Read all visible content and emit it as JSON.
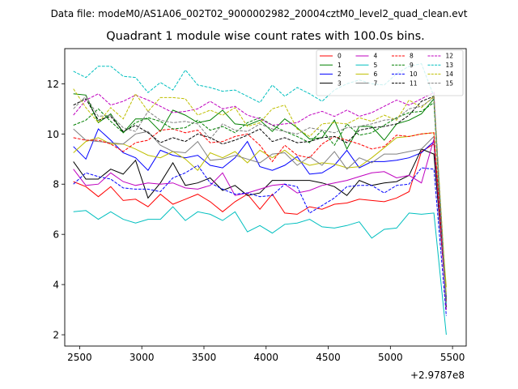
{
  "chart_data": {
    "type": "line",
    "suptitle": "Data file: modeM0/AS1A06_002T02_9000002982_20004cztM0_level2_quad_clean.evt",
    "title": "Quadrant 1 module wise count rates with 100.0s bins.",
    "xlabel": "",
    "ylabel": "",
    "x_offset_label": "+2.9787e8",
    "xlim": [
      2380,
      5610
    ],
    "ylim": [
      1.55,
      13.4
    ],
    "xticks": [
      2500,
      3000,
      3500,
      4000,
      4500,
      5000,
      5500
    ],
    "yticks": [
      2,
      4,
      6,
      8,
      10,
      12
    ],
    "legend_position": "top-right",
    "x": [
      2450,
      2550,
      2650,
      2750,
      2850,
      2950,
      3050,
      3150,
      3250,
      3350,
      3450,
      3550,
      3650,
      3750,
      3850,
      3950,
      4050,
      4150,
      4250,
      4350,
      4450,
      4550,
      4650,
      4750,
      4850,
      4950,
      5050,
      5150,
      5250,
      5350,
      5450
    ],
    "series": [
      {
        "name": "0",
        "color": "#ff0000",
        "dash": "solid",
        "values": [
          8.1,
          7.9,
          7.5,
          7.9,
          7.35,
          7.4,
          7.1,
          7.6,
          7.2,
          7.4,
          7.6,
          7.3,
          6.9,
          7.3,
          7.6,
          7.0,
          7.6,
          6.85,
          6.8,
          7.1,
          7.0,
          7.2,
          7.25,
          7.4,
          7.35,
          7.3,
          7.45,
          7.7,
          9.3,
          9.6,
          3.3
        ]
      },
      {
        "name": "1",
        "color": "#008000",
        "dash": "solid",
        "values": [
          11.6,
          11.55,
          10.45,
          10.8,
          10.05,
          10.6,
          10.6,
          10.1,
          10.95,
          10.75,
          10.45,
          10.55,
          10.95,
          10.4,
          10.35,
          10.55,
          10.1,
          10.6,
          10.25,
          9.8,
          9.85,
          10.55,
          9.4,
          10.3,
          10.3,
          9.75,
          10.4,
          10.55,
          10.8,
          11.4,
          3.4
        ]
      },
      {
        "name": "2",
        "color": "#0000ff",
        "dash": "solid",
        "values": [
          9.5,
          9.0,
          10.2,
          9.75,
          9.25,
          9.05,
          8.55,
          9.35,
          9.15,
          9.05,
          9.15,
          8.75,
          8.65,
          9.05,
          9.7,
          8.7,
          8.55,
          8.75,
          9.1,
          8.4,
          8.45,
          8.75,
          9.35,
          8.65,
          8.9,
          8.9,
          8.95,
          9.05,
          9.25,
          9.7,
          3.5
        ]
      },
      {
        "name": "3",
        "color": "#000000",
        "dash": "solid",
        "values": [
          8.9,
          8.2,
          8.2,
          8.6,
          8.4,
          8.95,
          7.45,
          8.05,
          8.85,
          7.95,
          8.05,
          8.25,
          7.75,
          7.95,
          7.55,
          7.65,
          8.15,
          8.15,
          8.15,
          8.15,
          8.05,
          7.9,
          7.55,
          8.15,
          7.95,
          8.05,
          8.1,
          8.35,
          9.4,
          9.2,
          3.4
        ]
      },
      {
        "name": "4",
        "color": "#bf00bf",
        "dash": "solid",
        "values": [
          8.6,
          7.95,
          8.0,
          8.45,
          8.1,
          7.95,
          8.05,
          8.0,
          8.05,
          7.85,
          7.8,
          7.95,
          8.45,
          7.55,
          7.65,
          7.8,
          7.95,
          8.0,
          7.65,
          7.75,
          7.95,
          8.05,
          8.15,
          8.3,
          8.45,
          8.5,
          8.25,
          8.35,
          8.05,
          9.8,
          3.2
        ]
      },
      {
        "name": "5",
        "color": "#00bfbf",
        "dash": "solid",
        "values": [
          6.9,
          6.95,
          6.6,
          6.9,
          6.6,
          6.45,
          6.6,
          6.6,
          7.1,
          6.55,
          6.9,
          6.8,
          6.55,
          6.9,
          6.1,
          6.35,
          6.05,
          6.4,
          6.45,
          6.6,
          6.3,
          6.25,
          6.35,
          6.5,
          5.85,
          6.2,
          6.25,
          6.85,
          6.8,
          6.85,
          2.0
        ]
      },
      {
        "name": "6",
        "color": "#bfbf00",
        "dash": "solid",
        "values": [
          9.25,
          9.7,
          9.85,
          9.6,
          9.6,
          9.4,
          9.15,
          9.05,
          9.3,
          9.0,
          8.55,
          9.25,
          9.05,
          9.3,
          8.85,
          9.35,
          9.05,
          9.35,
          8.95,
          8.75,
          8.85,
          8.8,
          8.65,
          8.7,
          9.05,
          9.45,
          9.85,
          9.9,
          10.0,
          10.05,
          3.9
        ]
      },
      {
        "name": "7",
        "color": "#808080",
        "dash": "solid",
        "values": [
          10.2,
          9.75,
          9.7,
          9.65,
          9.6,
          10.0,
          10.1,
          9.55,
          9.3,
          9.25,
          9.7,
          8.95,
          9.0,
          9.15,
          9.0,
          8.85,
          9.2,
          9.25,
          8.75,
          9.1,
          8.75,
          9.3,
          8.6,
          9.05,
          8.85,
          9.2,
          9.2,
          9.3,
          9.4,
          9.9,
          3.6
        ]
      },
      {
        "name": "8",
        "color": "#ff0000",
        "dash": "dashed",
        "values": [
          9.85,
          9.75,
          9.75,
          9.6,
          9.3,
          9.65,
          9.75,
          10.15,
          10.2,
          10.05,
          10.15,
          9.65,
          9.7,
          9.9,
          10.0,
          9.55,
          8.9,
          9.55,
          9.15,
          9.05,
          9.6,
          9.9,
          9.75,
          9.6,
          9.4,
          9.5,
          9.95,
          9.9,
          10.0,
          10.05,
          3.3
        ]
      },
      {
        "name": "9",
        "color": "#008000",
        "dash": "dashed",
        "values": [
          10.35,
          10.55,
          11.0,
          10.5,
          10.05,
          10.45,
          10.65,
          10.5,
          10.2,
          10.25,
          10.55,
          10.15,
          10.3,
          10.05,
          10.45,
          10.65,
          10.35,
          10.1,
          9.9,
          9.65,
          10.15,
          9.55,
          10.4,
          9.95,
          10.05,
          10.35,
          10.65,
          10.85,
          10.9,
          11.25,
          3.1
        ]
      },
      {
        "name": "10",
        "color": "#0000ff",
        "dash": "dashed",
        "values": [
          8.0,
          8.45,
          8.3,
          8.2,
          7.85,
          7.8,
          7.8,
          7.7,
          8.25,
          8.45,
          8.75,
          8.05,
          7.8,
          7.6,
          7.65,
          7.5,
          7.55,
          8.0,
          7.9,
          6.85,
          7.15,
          7.45,
          7.9,
          7.95,
          7.95,
          7.65,
          7.95,
          8.0,
          8.65,
          8.6,
          2.75
        ]
      },
      {
        "name": "11",
        "color": "#000000",
        "dash": "dashed",
        "values": [
          11.15,
          11.4,
          10.55,
          10.7,
          10.1,
          10.35,
          10.05,
          9.65,
          9.85,
          9.7,
          10.0,
          9.85,
          9.6,
          9.75,
          9.95,
          10.2,
          9.7,
          9.85,
          9.65,
          9.7,
          9.85,
          9.9,
          9.65,
          10.15,
          10.25,
          10.3,
          10.4,
          10.75,
          11.3,
          11.5,
          3.0
        ]
      },
      {
        "name": "12",
        "color": "#bf00bf",
        "dash": "dashed",
        "values": [
          10.75,
          11.35,
          11.6,
          11.15,
          11.3,
          11.55,
          11.35,
          11.1,
          10.85,
          10.9,
          11.0,
          11.3,
          11.0,
          11.1,
          10.75,
          10.6,
          10.35,
          10.4,
          10.45,
          10.75,
          10.9,
          10.7,
          10.95,
          10.7,
          10.85,
          11.1,
          11.35,
          11.15,
          11.4,
          11.65,
          3.0
        ]
      },
      {
        "name": "13",
        "color": "#00bfbf",
        "dash": "dashed",
        "values": [
          12.5,
          12.25,
          12.7,
          12.7,
          12.3,
          12.25,
          11.65,
          12.05,
          11.75,
          12.55,
          11.95,
          11.85,
          11.7,
          11.75,
          11.5,
          11.25,
          11.95,
          11.5,
          11.85,
          11.6,
          11.3,
          11.75,
          12.0,
          12.15,
          12.0,
          11.95,
          12.4,
          12.7,
          12.8,
          11.5,
          3.2
        ]
      },
      {
        "name": "14",
        "color": "#bfbf00",
        "dash": "dashed",
        "values": [
          11.8,
          11.05,
          10.45,
          11.05,
          10.6,
          11.6,
          10.9,
          11.45,
          11.45,
          11.4,
          10.75,
          10.95,
          10.75,
          11.05,
          10.3,
          10.45,
          11.0,
          11.15,
          10.2,
          9.9,
          10.4,
          10.45,
          10.4,
          10.65,
          10.5,
          10.75,
          10.55,
          11.35,
          11.05,
          11.5,
          3.6
        ]
      },
      {
        "name": "15",
        "color": "#808080",
        "dash": "dashed",
        "values": [
          11.0,
          11.5,
          10.7,
          10.75,
          10.25,
          10.1,
          10.9,
          10.55,
          10.45,
          10.5,
          10.4,
          9.8,
          10.4,
          10.15,
          10.1,
          10.4,
          10.2,
          10.1,
          10.0,
          10.25,
          10.15,
          10.05,
          10.25,
          10.3,
          10.4,
          10.55,
          10.6,
          11.0,
          11.1,
          11.45,
          3.3
        ]
      }
    ]
  }
}
